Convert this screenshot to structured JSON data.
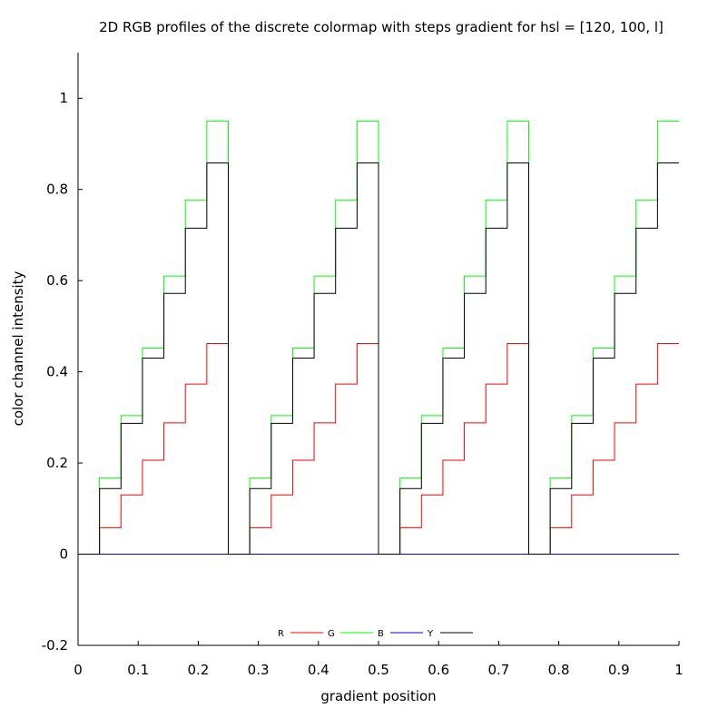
{
  "chart_data": {
    "type": "line",
    "title": "2D RGB profiles of the discrete colormap with steps gradient for hsl = [120, 100, l]",
    "xlabel": "gradient position",
    "ylabel": "color channel intensity",
    "xlim": [
      0,
      1
    ],
    "ylim": [
      -0.2,
      1.1
    ],
    "x_ticks": [
      "0",
      "0.1",
      "0.2",
      "0.3",
      "0.4",
      "0.5",
      "0.6",
      "0.7",
      "0.8",
      "0.9",
      "1"
    ],
    "y_ticks": [
      "-0.2",
      "0",
      "0.2",
      "0.4",
      "0.6",
      "0.8",
      "1"
    ],
    "grid": false,
    "legend_position": "bottom-center",
    "pattern": {
      "repeats": 4,
      "steps_per_cycle": 7,
      "shape": "step"
    },
    "series": [
      {
        "name": "R",
        "color": "#ff0000",
        "values": [
          0,
          0.058,
          0.13,
          0.206,
          0.288,
          0.373,
          0.462
        ]
      },
      {
        "name": "G",
        "color": "#00ff00",
        "values": [
          0,
          0.167,
          0.304,
          0.452,
          0.61,
          0.777,
          0.95
        ]
      },
      {
        "name": "B",
        "color": "#0000ff",
        "values": [
          0,
          0,
          0,
          0,
          0,
          0,
          0
        ]
      },
      {
        "name": "Y",
        "color": "#000000",
        "values": [
          0,
          0.144,
          0.287,
          0.43,
          0.572,
          0.715,
          0.858
        ]
      }
    ]
  }
}
